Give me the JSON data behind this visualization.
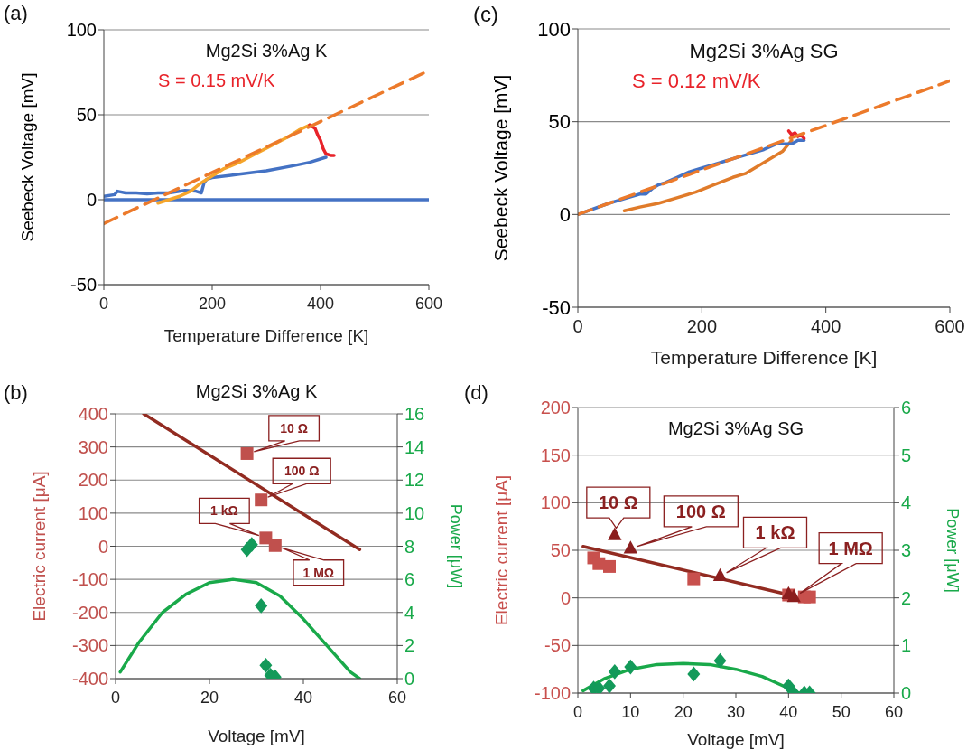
{
  "chart_data": [
    {
      "type": "line",
      "title": "Mg2Si 3%Ag K",
      "xlabel": "Temperature Difference [K]",
      "ylabel": "Seebeck Voltage [mV]",
      "xlim": [
        0,
        600
      ],
      "xticks": [
        0,
        200,
        400,
        600
      ],
      "ylim": [
        -50,
        100
      ],
      "yticks": [
        -50,
        0,
        50,
        100
      ],
      "grid": "y",
      "annotations": [
        "(a)",
        "S = 0.15 mV/K"
      ],
      "series": [
        {
          "color": "#4472c4",
          "x": [
            0,
            600
          ],
          "values": [
            0,
            0
          ]
        },
        {
          "color": "#4472c4",
          "x": [
            0,
            20,
            25,
            40,
            60,
            80,
            100,
            120,
            150,
            170,
            180,
            185,
            190,
            200,
            250,
            300,
            350,
            380,
            410
          ],
          "values": [
            2,
            3,
            5,
            4,
            4,
            3.5,
            4,
            4,
            5.5,
            5,
            4,
            10,
            12,
            13,
            15,
            17,
            20,
            22,
            25
          ]
        },
        {
          "color": "#f5a52a",
          "x": [
            100,
            120,
            140,
            160,
            180,
            200,
            220,
            250,
            280,
            310,
            340,
            360,
            380
          ],
          "values": [
            -2,
            0,
            2,
            5,
            10,
            14,
            18,
            22,
            27,
            32,
            37,
            41,
            44
          ]
        },
        {
          "color": "#e8232a",
          "x": [
            380,
            390,
            395,
            400,
            405,
            410,
            420,
            425
          ],
          "values": [
            44,
            42,
            38,
            35,
            30,
            27,
            26,
            26
          ]
        },
        {
          "color": "#ec7a2b",
          "line_style": "dashed",
          "x": [
            0,
            600
          ],
          "values": [
            -14,
            76
          ]
        }
      ]
    },
    {
      "type": "line",
      "title": "Mg2Si 3%Ag SG",
      "xlabel": "Temperature Difference [K]",
      "ylabel": "Seebeck Voltage [mV]",
      "xlim": [
        0,
        600
      ],
      "xticks": [
        0,
        200,
        400,
        600
      ],
      "ylim": [
        -50,
        100
      ],
      "yticks": [
        -50,
        0,
        50,
        100
      ],
      "grid": "y",
      "annotations": [
        "(c)",
        "S = 0.12 mV/K"
      ],
      "series": [
        {
          "color": "#e07b2a",
          "x": [
            75,
            100,
            130,
            160,
            190,
            220,
            250,
            270,
            290,
            310,
            330,
            345
          ],
          "values": [
            2,
            4,
            6,
            9,
            12,
            16,
            20,
            22,
            26,
            30,
            34,
            40
          ]
        },
        {
          "color": "#4472c4",
          "x": [
            0,
            50,
            80,
            100,
            110,
            120,
            130,
            140,
            160,
            180,
            200,
            220,
            240,
            260,
            280,
            300,
            320,
            330,
            345,
            355,
            365
          ],
          "values": [
            0,
            6,
            9,
            11,
            11,
            14,
            16,
            17,
            20,
            23,
            25,
            27,
            29,
            31,
            33,
            35,
            38,
            38,
            38,
            40,
            40
          ]
        },
        {
          "color": "#e8232a",
          "x": [
            340,
            345,
            350,
            355,
            360,
            365
          ],
          "values": [
            45,
            43,
            44,
            42,
            43,
            41
          ]
        },
        {
          "color": "#ec7a2b",
          "line_style": "dashed",
          "x": [
            0,
            600
          ],
          "values": [
            0,
            72
          ]
        }
      ]
    },
    {
      "type": "scatter",
      "title": "Mg2Si 3%Ag K",
      "xlabel": "Voltage [mV]",
      "ylabel": "Electric current [μA]",
      "y2label": "Power [μW]",
      "xlim": [
        0,
        60
      ],
      "xticks": [
        0,
        20,
        40,
        60
      ],
      "ylim": [
        -400,
        400
      ],
      "yticks": [
        -400,
        -300,
        -200,
        -100,
        0,
        100,
        200,
        300,
        400
      ],
      "y2lim": [
        0,
        16
      ],
      "y2ticks": [
        0,
        2,
        4,
        6,
        8,
        10,
        12,
        14,
        16
      ],
      "grid": "y",
      "annotations": [
        "(b)",
        {
          "text": "10 Ω",
          "x": 28,
          "y": 280
        },
        {
          "text": "100 Ω",
          "x": 31,
          "y": 140
        },
        {
          "text": "1 kΩ",
          "x": 32,
          "y": 25
        },
        {
          "text": "1 MΩ",
          "x": 34,
          "y": 2
        }
      ],
      "series": [
        {
          "color": "#c0504d",
          "marker": "square",
          "x": [
            28,
            31,
            32,
            34
          ],
          "values": [
            280,
            140,
            25,
            2
          ]
        },
        {
          "type": "line",
          "color": "#922b21",
          "x": [
            6,
            52
          ],
          "values": [
            400,
            -10
          ]
        },
        {
          "type": "line",
          "axis": "y2",
          "color": "#19a94a",
          "x": [
            1,
            5,
            10,
            15,
            20,
            25,
            30,
            35,
            40,
            45,
            50,
            52
          ],
          "values": [
            0.4,
            2.2,
            4,
            5.1,
            5.8,
            6,
            5.8,
            5,
            3.6,
            2,
            0.4,
            0
          ]
        },
        {
          "axis": "y2",
          "color": "#139a5a",
          "marker": "diamond",
          "x": [
            28,
            29,
            31,
            32,
            33,
            34
          ],
          "values": [
            7.8,
            8.1,
            4.4,
            0.8,
            0.2,
            0.1
          ]
        }
      ]
    },
    {
      "type": "scatter",
      "title": "Mg2Si 3%Ag SG",
      "xlabel": "Voltage [mV]",
      "ylabel": "Electric current [μA]",
      "y2label": "Power [μW]",
      "xlim": [
        0,
        60
      ],
      "xticks": [
        0,
        10,
        20,
        30,
        40,
        50,
        60
      ],
      "ylim": [
        -100,
        200
      ],
      "yticks": [
        -100,
        -50,
        0,
        50,
        100,
        150,
        200
      ],
      "y2lim": [
        0,
        6
      ],
      "y2ticks": [
        0,
        1,
        2,
        3,
        4,
        5,
        6
      ],
      "grid": "y",
      "annotations": [
        "(d)",
        {
          "text": "10 Ω",
          "x": 7,
          "y": 66
        },
        {
          "text": "100 Ω",
          "x": 10,
          "y": 52
        },
        {
          "text": "1 kΩ",
          "x": 27,
          "y": 23
        },
        {
          "text": "1 MΩ",
          "x": 41,
          "y": 1
        }
      ],
      "series": [
        {
          "color": "#c8504d",
          "marker": "square",
          "x": [
            3,
            4,
            6,
            22,
            40,
            43,
            44
          ],
          "values": [
            42,
            36,
            33,
            20,
            3,
            1,
            1
          ]
        },
        {
          "type": "line",
          "color": "#922b21",
          "x": [
            1,
            41
          ],
          "values": [
            54,
            2
          ]
        },
        {
          "color": "#8b1e1e",
          "marker": "triangle",
          "x": [
            7,
            10,
            27,
            40,
            41
          ],
          "values": [
            66,
            52,
            23,
            4,
            1
          ]
        },
        {
          "type": "line",
          "axis": "y2",
          "color": "#19a94a",
          "x": [
            1,
            5,
            10,
            15,
            20,
            25,
            30,
            35,
            40,
            42
          ],
          "values": [
            0.05,
            0.3,
            0.5,
            0.6,
            0.62,
            0.6,
            0.5,
            0.35,
            0.1,
            0
          ]
        },
        {
          "axis": "y2",
          "color": "#139a5a",
          "marker": "diamond",
          "x": [
            3,
            4,
            6,
            7,
            10,
            22,
            27,
            40,
            41,
            43,
            44
          ],
          "values": [
            0.1,
            0.1,
            0.15,
            0.45,
            0.55,
            0.4,
            0.68,
            0.15,
            0,
            0,
            0
          ]
        }
      ]
    }
  ]
}
